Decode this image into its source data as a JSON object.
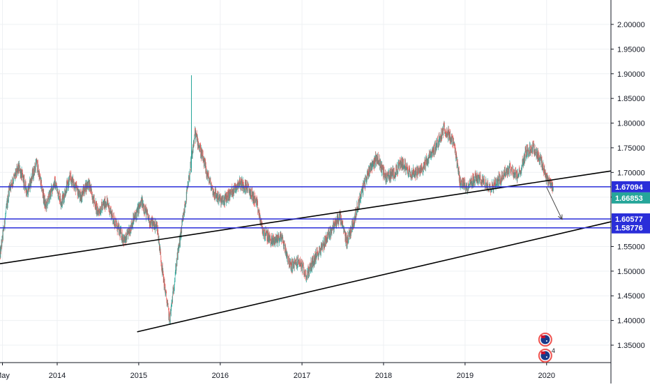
{
  "chart_data": {
    "type": "candlestick",
    "colors": {
      "up": "#26a69a",
      "down": "#ef5350",
      "horizontal_level": "#2a2ed9",
      "trendline": "#000000",
      "last_price": "#26a69a",
      "grid": "#eef0f3",
      "axis_text": "#131722"
    },
    "y_axis": {
      "range": [
        1.3,
        2.04
      ],
      "ticks": [
        "2.00000",
        "1.95000",
        "1.90000",
        "1.85000",
        "1.80000",
        "1.75000",
        "1.70000",
        "1.65000",
        "1.60000",
        "1.55000",
        "1.50000",
        "1.45000",
        "1.40000",
        "1.35000"
      ],
      "tick_values": [
        2.0,
        1.95,
        1.9,
        1.85,
        1.8,
        1.75,
        1.7,
        1.65,
        1.6,
        1.55,
        1.5,
        1.45,
        1.4,
        1.35
      ]
    },
    "x_axis": {
      "range": [
        "2013-04-20",
        "2020-10-15"
      ],
      "ticks": [
        "May",
        "2014",
        "2015",
        "2016",
        "2017",
        "2018",
        "2019",
        "2020"
      ],
      "tick_dates": [
        "2013-05-01",
        "2014-01-01",
        "2015-01-01",
        "2016-01-01",
        "2017-01-01",
        "2018-01-01",
        "2019-01-01",
        "2020-01-01"
      ]
    },
    "series": [
      {
        "values_approx": [
          [
            "2013-04-20",
            1.53
          ],
          [
            "2013-06-01",
            1.67
          ],
          [
            "2013-07-15",
            1.71
          ],
          [
            "2013-08-20",
            1.66
          ],
          [
            "2013-10-01",
            1.72
          ],
          [
            "2013-11-10",
            1.63
          ],
          [
            "2013-12-20",
            1.68
          ],
          [
            "2014-01-20",
            1.64
          ],
          [
            "2014-03-01",
            1.69
          ],
          [
            "2014-04-15",
            1.65
          ],
          [
            "2014-05-20",
            1.68
          ],
          [
            "2014-07-01",
            1.62
          ],
          [
            "2014-08-10",
            1.64
          ],
          [
            "2014-09-25",
            1.59
          ],
          [
            "2014-11-01",
            1.56
          ],
          [
            "2014-12-05",
            1.6
          ],
          [
            "2015-01-15",
            1.64
          ],
          [
            "2015-02-20",
            1.6
          ],
          [
            "2015-03-25",
            1.59
          ],
          [
            "2015-04-20",
            1.49
          ],
          [
            "2015-05-20",
            1.4
          ],
          [
            "2015-06-20",
            1.52
          ],
          [
            "2015-07-20",
            1.61
          ],
          [
            "2015-08-15",
            1.69
          ],
          [
            "2015-09-10",
            1.78
          ],
          [
            "2015-10-01",
            1.75
          ],
          [
            "2015-11-01",
            1.7
          ],
          [
            "2015-12-01",
            1.66
          ],
          [
            "2016-01-10",
            1.64
          ],
          [
            "2016-02-20",
            1.66
          ],
          [
            "2016-03-25",
            1.68
          ],
          [
            "2016-05-01",
            1.67
          ],
          [
            "2016-06-10",
            1.64
          ],
          [
            "2016-07-10",
            1.58
          ],
          [
            "2016-08-20",
            1.56
          ],
          [
            "2016-10-01",
            1.57
          ],
          [
            "2016-11-10",
            1.51
          ],
          [
            "2016-12-20",
            1.52
          ],
          [
            "2017-01-20",
            1.49
          ],
          [
            "2017-02-20",
            1.52
          ],
          [
            "2017-04-01",
            1.55
          ],
          [
            "2017-05-20",
            1.59
          ],
          [
            "2017-06-20",
            1.61
          ],
          [
            "2017-07-20",
            1.56
          ],
          [
            "2017-08-20",
            1.6
          ],
          [
            "2017-09-25",
            1.66
          ],
          [
            "2017-11-01",
            1.71
          ],
          [
            "2017-12-05",
            1.73
          ],
          [
            "2018-01-10",
            1.69
          ],
          [
            "2018-02-20",
            1.7
          ],
          [
            "2018-03-25",
            1.72
          ],
          [
            "2018-05-01",
            1.7
          ],
          [
            "2018-06-10",
            1.7
          ],
          [
            "2018-07-10",
            1.72
          ],
          [
            "2018-08-20",
            1.75
          ],
          [
            "2018-10-01",
            1.79
          ],
          [
            "2018-11-10",
            1.76
          ],
          [
            "2018-12-10",
            1.68
          ],
          [
            "2019-01-10",
            1.67
          ],
          [
            "2019-02-20",
            1.69
          ],
          [
            "2019-03-25",
            1.68
          ],
          [
            "2019-05-01",
            1.67
          ],
          [
            "2019-06-10",
            1.69
          ],
          [
            "2019-07-20",
            1.71
          ],
          [
            "2019-08-25",
            1.69
          ],
          [
            "2019-10-01",
            1.74
          ],
          [
            "2019-11-01",
            1.75
          ],
          [
            "2019-12-01",
            1.73
          ],
          [
            "2020-01-01",
            1.69
          ],
          [
            "2020-01-31",
            1.66853
          ]
        ]
      }
    ],
    "horizontal_levels": [
      {
        "label": "1.67094",
        "value": 1.67094
      },
      {
        "label": "1.60577",
        "value": 1.60577
      },
      {
        "label": "1.58776",
        "value": 1.58776
      }
    ],
    "last_price": {
      "label": "1.66853",
      "value": 1.66853
    },
    "trendlines": [
      {
        "from": [
          "2013-04-20",
          1.515
        ],
        "to": [
          "2020-10-15",
          1.703
        ]
      },
      {
        "from": [
          "2014-12-25",
          1.377
        ],
        "to": [
          "2020-10-15",
          1.6
        ]
      }
    ],
    "projection_arrow": {
      "from": [
        "2020-01-01",
        1.67
      ],
      "to": [
        "2020-03-10",
        1.605
      ]
    },
    "event_markers": [
      {
        "icon": "country-flag-icon",
        "date": "2019-12-26"
      },
      {
        "icon": "country-flag-icon",
        "date": "2019-12-26",
        "badge": "4"
      }
    ]
  }
}
